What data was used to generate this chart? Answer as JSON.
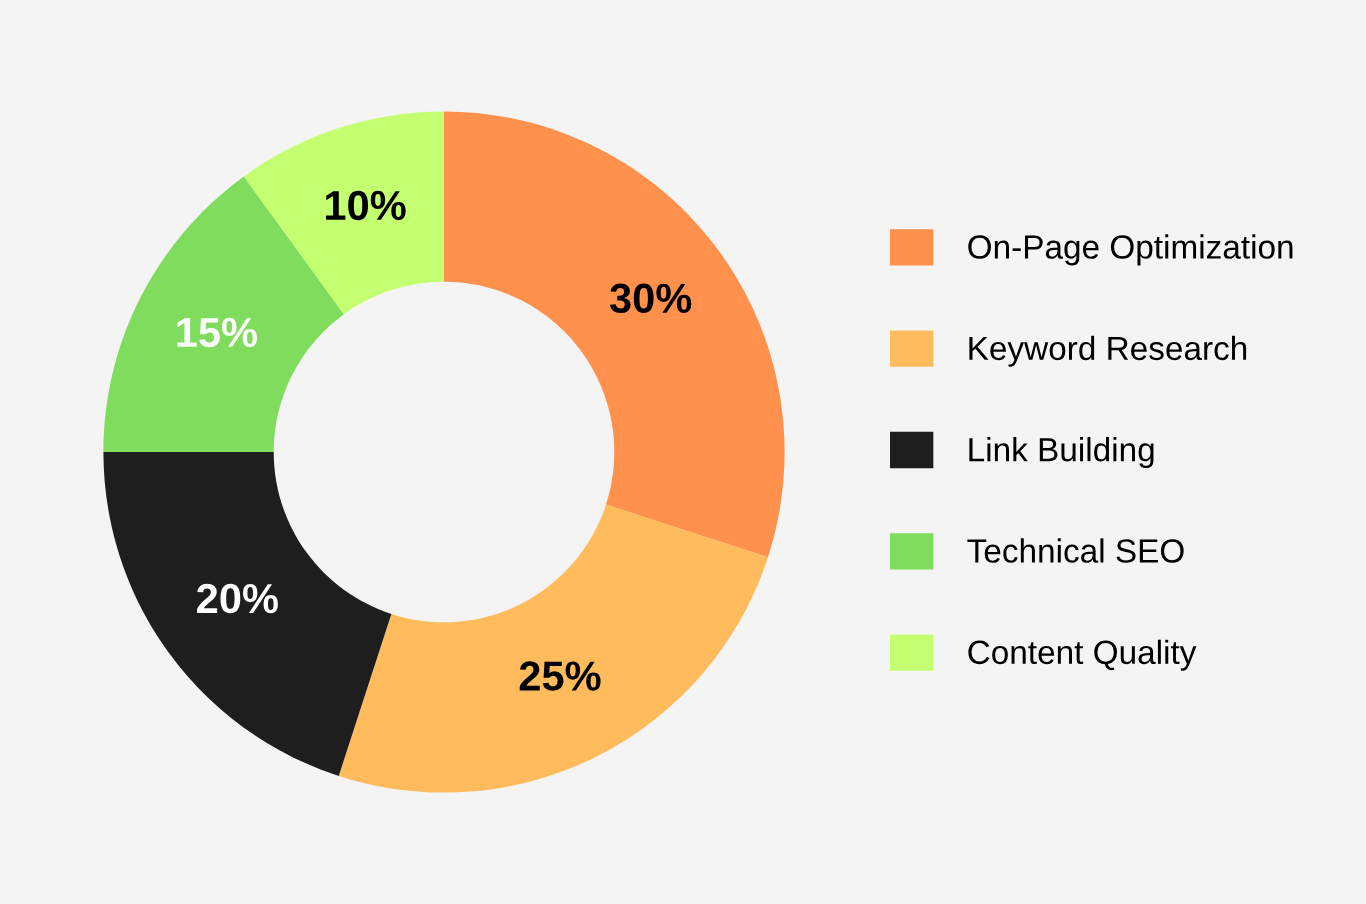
{
  "chart_data": {
    "type": "donut",
    "categories": [
      "On-Page Optimization",
      "Keyword Research",
      "Link Building",
      "Technical SEO",
      "Content Quality"
    ],
    "values": [
      30,
      25,
      20,
      15,
      10
    ],
    "colors": [
      "#ff914d",
      "#ffbb5c",
      "#1e1e1e",
      "#80dc5c",
      "#c3ff70"
    ],
    "value_labels": [
      "30%",
      "25%",
      "20%",
      "15%",
      "10%"
    ],
    "legend": "right"
  }
}
